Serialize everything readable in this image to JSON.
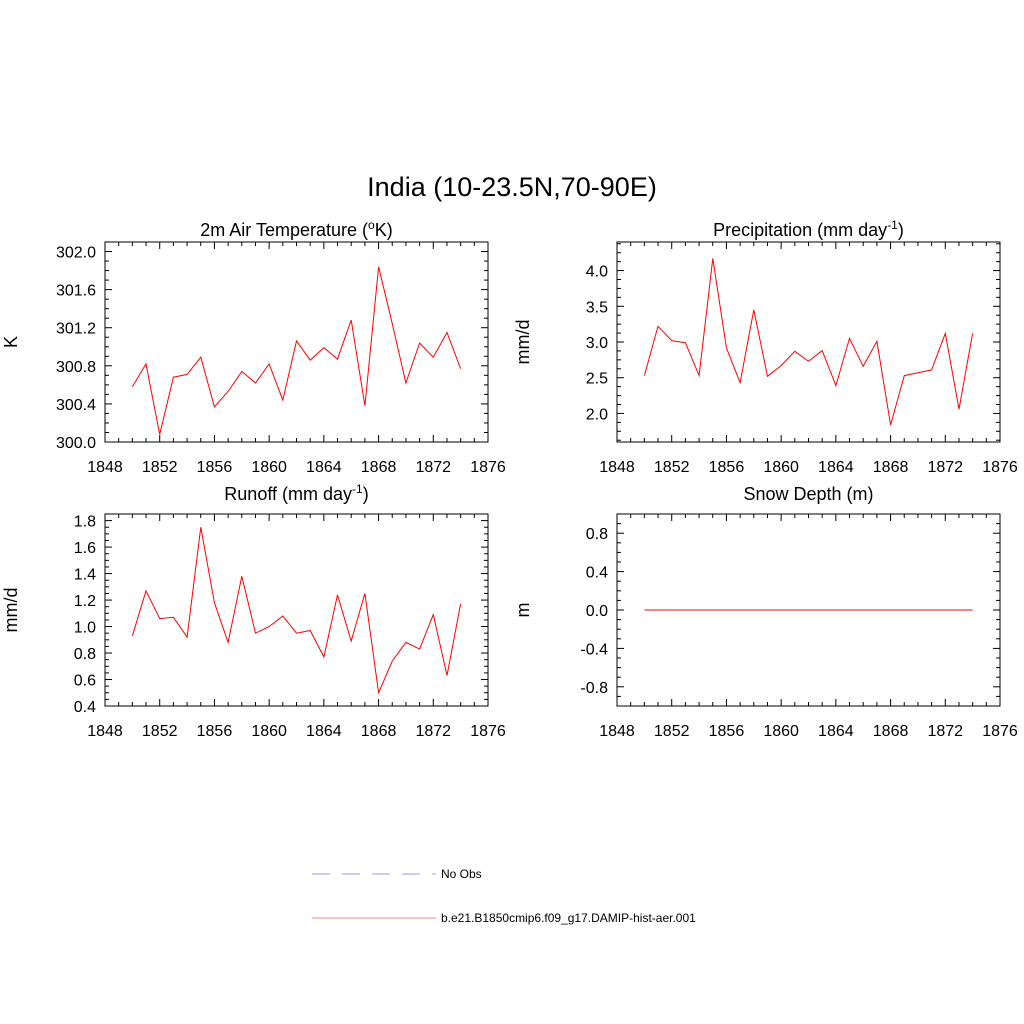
{
  "title": "India (10-23.5N,70-90E)",
  "chart_data": [
    {
      "type": "line",
      "title": "2m Air Temperature (",
      "title_sup": "o",
      "title_after": "K)",
      "ylabel": "K",
      "xlim": [
        1848,
        1876
      ],
      "ylim": [
        300.0,
        302.1
      ],
      "xticks": [
        "1848",
        "1852",
        "1856",
        "1860",
        "1864",
        "1868",
        "1872",
        "1876"
      ],
      "yticks": [
        "300.0",
        "300.4",
        "300.8",
        "301.2",
        "301.6",
        "302.0"
      ],
      "x": [
        1850,
        1851,
        1852,
        1853,
        1854,
        1855,
        1856,
        1857,
        1858,
        1859,
        1860,
        1861,
        1862,
        1863,
        1864,
        1865,
        1866,
        1867,
        1868,
        1869,
        1870,
        1871,
        1872,
        1873,
        1874
      ],
      "series": [
        {
          "values": [
            300.58,
            300.82,
            300.08,
            300.68,
            300.71,
            300.89,
            300.37,
            300.53,
            300.74,
            300.62,
            300.82,
            300.44,
            301.06,
            300.86,
            300.99,
            300.87,
            301.28,
            300.38,
            301.84,
            301.24,
            300.62,
            301.04,
            300.89,
            301.15,
            300.77
          ]
        }
      ]
    },
    {
      "type": "line",
      "title": "Precipitation (mm day",
      "title_sup": "-1",
      "title_after": ")",
      "ylabel": "mm/d",
      "xlim": [
        1848,
        1876
      ],
      "ylim": [
        1.6,
        4.4
      ],
      "xticks": [
        "1848",
        "1852",
        "1856",
        "1860",
        "1864",
        "1868",
        "1872",
        "1876"
      ],
      "yticks": [
        "2.0",
        "2.5",
        "3.0",
        "3.5",
        "4.0"
      ],
      "x": [
        1850,
        1851,
        1852,
        1853,
        1854,
        1855,
        1856,
        1857,
        1858,
        1859,
        1860,
        1861,
        1862,
        1863,
        1864,
        1865,
        1866,
        1867,
        1868,
        1869,
        1870,
        1871,
        1872,
        1873,
        1874
      ],
      "series": [
        {
          "values": [
            2.53,
            3.22,
            3.02,
            2.99,
            2.53,
            4.17,
            2.92,
            2.43,
            3.45,
            2.52,
            2.67,
            2.87,
            2.73,
            2.88,
            2.39,
            3.05,
            2.66,
            3.01,
            1.84,
            2.53,
            2.57,
            2.61,
            3.12,
            2.06,
            3.12
          ]
        }
      ]
    },
    {
      "type": "line",
      "title": "Runoff (mm day",
      "title_sup": "-1",
      "title_after": ")",
      "ylabel": "mm/d",
      "xlim": [
        1848,
        1876
      ],
      "ylim": [
        0.4,
        1.85
      ],
      "xticks": [
        "1848",
        "1852",
        "1856",
        "1860",
        "1864",
        "1868",
        "1872",
        "1876"
      ],
      "yticks": [
        "0.4",
        "0.6",
        "0.8",
        "1.0",
        "1.2",
        "1.4",
        "1.6",
        "1.8"
      ],
      "x": [
        1850,
        1851,
        1852,
        1853,
        1854,
        1855,
        1856,
        1857,
        1858,
        1859,
        1860,
        1861,
        1862,
        1863,
        1864,
        1865,
        1866,
        1867,
        1868,
        1869,
        1870,
        1871,
        1872,
        1873,
        1874
      ],
      "series": [
        {
          "values": [
            0.93,
            1.27,
            1.06,
            1.07,
            0.92,
            1.75,
            1.18,
            0.88,
            1.38,
            0.95,
            1.0,
            1.08,
            0.95,
            0.97,
            0.77,
            1.24,
            0.89,
            1.25,
            0.5,
            0.74,
            0.88,
            0.83,
            1.09,
            0.63,
            1.17
          ]
        }
      ]
    },
    {
      "type": "line",
      "title": "Snow Depth (m)",
      "title_sup": "",
      "title_after": "",
      "ylabel": "m",
      "xlim": [
        1848,
        1876
      ],
      "ylim": [
        -1.0,
        1.0
      ],
      "xticks": [
        "1848",
        "1852",
        "1856",
        "1860",
        "1864",
        "1868",
        "1872",
        "1876"
      ],
      "yticks": [
        "-0.8",
        "-0.4",
        "0.0",
        "0.4",
        "0.8"
      ],
      "x": [
        1850,
        1851,
        1852,
        1853,
        1854,
        1855,
        1856,
        1857,
        1858,
        1859,
        1860,
        1861,
        1862,
        1863,
        1864,
        1865,
        1866,
        1867,
        1868,
        1869,
        1870,
        1871,
        1872,
        1873,
        1874
      ],
      "series": [
        {
          "values": [
            0,
            0,
            0,
            0,
            0,
            0,
            0,
            0,
            0,
            0,
            0,
            0,
            0,
            0,
            0,
            0,
            0,
            0,
            0,
            0,
            0,
            0,
            0,
            0,
            0
          ]
        }
      ]
    }
  ],
  "legend": [
    {
      "label": "No Obs",
      "style": "dashed",
      "color": "#aab0ee"
    },
    {
      "label": "b.e21.B1850cmip6.f09_g17.DAMIP-hist-aer.001",
      "style": "solid",
      "color": "#ff9a9a"
    }
  ],
  "colors": {
    "series": "#ff0000",
    "axis": "#000000"
  }
}
